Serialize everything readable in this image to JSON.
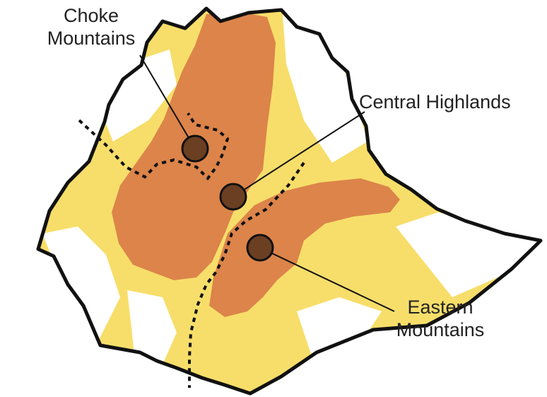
{
  "map": {
    "colors": {
      "background": "#ffffff",
      "lowland": "#f7de6a",
      "highland": "#dc844a",
      "border": "#111111",
      "site_fill": "#6b3f22",
      "label": "#222222"
    },
    "labels": {
      "choke_line1": "Choke",
      "choke_line2": "Mountains",
      "central": "Central Highlands",
      "eastern_line1": "Eastern",
      "eastern_line2": "Mountains"
    }
  }
}
